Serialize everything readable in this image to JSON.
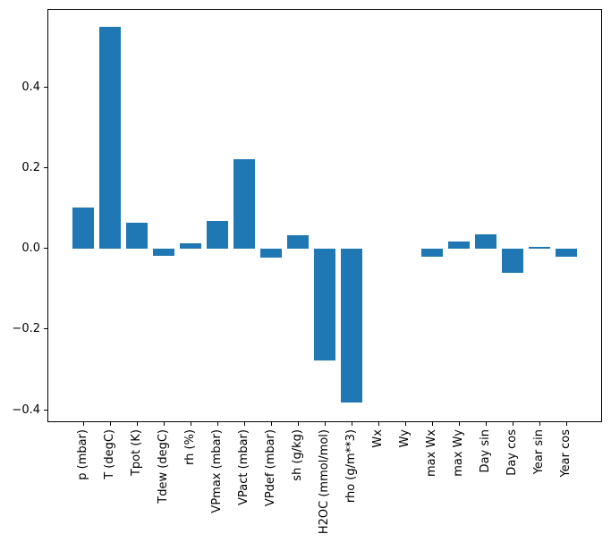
{
  "figure": {
    "background": "#ffffff",
    "axis_color": "#000000",
    "text_color": "#000000"
  },
  "chart_data": {
    "type": "bar",
    "title": "",
    "xlabel": "",
    "ylabel": "",
    "bar_color": "#1f77b4",
    "grid": false,
    "legend": null,
    "x_tick_rotation": 90,
    "categories": [
      "p (mbar)",
      "T (degC)",
      "Tpot (K)",
      "Tdew (degC)",
      "rh (%)",
      "VPmax (mbar)",
      "VPact (mbar)",
      "VPdef (mbar)",
      "sh (g/kg)",
      "H2OC (mmol/mol)",
      "rho (g/m**3)",
      "Wx",
      "Wy",
      "max Wx",
      "max Wy",
      "Day sin",
      "Day cos",
      "Year sin",
      "Year cos"
    ],
    "values": [
      0.1,
      0.549,
      0.064,
      -0.019,
      0.013,
      0.067,
      0.22,
      -0.024,
      0.033,
      -0.278,
      -0.383,
      0.0,
      0.0,
      -0.02,
      0.016,
      0.034,
      -0.06,
      0.003,
      -0.02
    ],
    "ylim": [
      -0.431,
      0.593
    ],
    "yticks": [
      -0.4,
      -0.2,
      0.0,
      0.2,
      0.4
    ],
    "ytick_labels": [
      "−0.4",
      "−0.2",
      "0.0",
      "0.2",
      "0.4"
    ]
  }
}
